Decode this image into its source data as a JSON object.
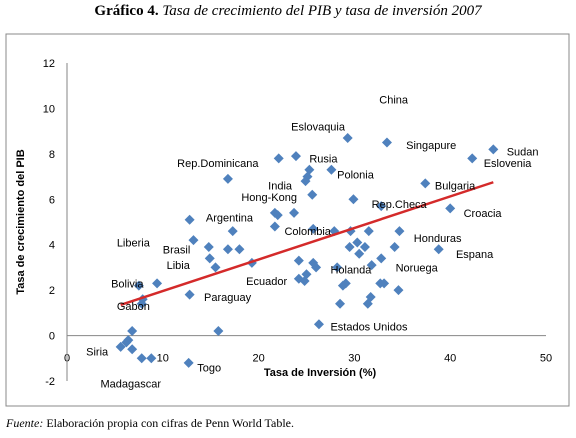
{
  "page": {
    "title_bold": "Gráfico 4.",
    "title_italic": "Tasa de crecimiento del PIB y tasa de inversión 2007",
    "source_label": "Fuente:",
    "source_text": "Elaboración propia con cifras de Penn World Table."
  },
  "chart_data": {
    "type": "scatter",
    "xlabel": "Tasa de Inversión (%)",
    "ylabel": "Tasa de crecimiento del PIB",
    "xlim": [
      0,
      50
    ],
    "ylim": [
      -2,
      12
    ],
    "xticks": [
      0,
      10,
      20,
      30,
      40,
      50
    ],
    "yticks": [
      -2,
      0,
      2,
      4,
      6,
      8,
      10,
      12
    ],
    "grid": false,
    "legend": "none",
    "marker_color": "#4f81bd",
    "trend_color": "#d42a2a",
    "trendline": {
      "x": [
        5.6,
        44.5
      ],
      "y": [
        1.35,
        6.75
      ]
    },
    "points": [
      {
        "x": 29.3,
        "y": 8.7
      },
      {
        "x": 33.4,
        "y": 8.5
      },
      {
        "x": 44.5,
        "y": 8.2
      },
      {
        "x": 42.3,
        "y": 7.8
      },
      {
        "x": 22.1,
        "y": 7.8
      },
      {
        "x": 23.9,
        "y": 7.9
      },
      {
        "x": 25.3,
        "y": 7.3
      },
      {
        "x": 25.1,
        "y": 7.0
      },
      {
        "x": 24.9,
        "y": 6.8
      },
      {
        "x": 27.6,
        "y": 7.3
      },
      {
        "x": 16.8,
        "y": 6.9
      },
      {
        "x": 37.4,
        "y": 6.7
      },
      {
        "x": 25.6,
        "y": 6.2
      },
      {
        "x": 29.9,
        "y": 6.0
      },
      {
        "x": 32.8,
        "y": 5.7
      },
      {
        "x": 40.0,
        "y": 5.6
      },
      {
        "x": 12.8,
        "y": 5.1
      },
      {
        "x": 21.7,
        "y": 5.4
      },
      {
        "x": 22.0,
        "y": 5.3
      },
      {
        "x": 23.7,
        "y": 5.4
      },
      {
        "x": 17.3,
        "y": 4.6
      },
      {
        "x": 21.7,
        "y": 4.8
      },
      {
        "x": 25.7,
        "y": 4.7
      },
      {
        "x": 27.9,
        "y": 4.6
      },
      {
        "x": 29.6,
        "y": 4.6
      },
      {
        "x": 31.5,
        "y": 4.6
      },
      {
        "x": 34.7,
        "y": 4.6
      },
      {
        "x": 30.3,
        "y": 4.1
      },
      {
        "x": 29.5,
        "y": 3.9
      },
      {
        "x": 31.1,
        "y": 3.9
      },
      {
        "x": 34.2,
        "y": 3.9
      },
      {
        "x": 38.8,
        "y": 3.8
      },
      {
        "x": 13.2,
        "y": 4.2
      },
      {
        "x": 14.8,
        "y": 3.9
      },
      {
        "x": 16.8,
        "y": 3.8
      },
      {
        "x": 18.0,
        "y": 3.8
      },
      {
        "x": 14.9,
        "y": 3.4
      },
      {
        "x": 15.5,
        "y": 3.0
      },
      {
        "x": 19.3,
        "y": 3.2
      },
      {
        "x": 24.2,
        "y": 3.3
      },
      {
        "x": 25.7,
        "y": 3.2
      },
      {
        "x": 26.0,
        "y": 3.0
      },
      {
        "x": 30.5,
        "y": 3.6
      },
      {
        "x": 32.8,
        "y": 3.4
      },
      {
        "x": 31.8,
        "y": 3.1
      },
      {
        "x": 28.2,
        "y": 3.0
      },
      {
        "x": 25.0,
        "y": 2.7
      },
      {
        "x": 24.2,
        "y": 2.5
      },
      {
        "x": 24.8,
        "y": 2.4
      },
      {
        "x": 29.1,
        "y": 2.3
      },
      {
        "x": 28.8,
        "y": 2.2
      },
      {
        "x": 32.7,
        "y": 2.3
      },
      {
        "x": 33.1,
        "y": 2.3
      },
      {
        "x": 31.7,
        "y": 1.7
      },
      {
        "x": 31.4,
        "y": 1.4
      },
      {
        "x": 28.5,
        "y": 1.4
      },
      {
        "x": 34.6,
        "y": 2.0
      },
      {
        "x": 12.8,
        "y": 1.8
      },
      {
        "x": 9.4,
        "y": 2.3
      },
      {
        "x": 7.5,
        "y": 2.2
      },
      {
        "x": 7.9,
        "y": 1.6
      },
      {
        "x": 7.8,
        "y": 1.4
      },
      {
        "x": 6.8,
        "y": 0.2
      },
      {
        "x": 6.4,
        "y": -0.2
      },
      {
        "x": 6.2,
        "y": -0.3
      },
      {
        "x": 5.6,
        "y": -0.5
      },
      {
        "x": 6.8,
        "y": -0.6
      },
      {
        "x": 7.8,
        "y": -1.0
      },
      {
        "x": 8.8,
        "y": -1.0
      },
      {
        "x": 12.7,
        "y": -1.2
      },
      {
        "x": 15.8,
        "y": 0.2
      },
      {
        "x": 26.3,
        "y": 0.5
      }
    ],
    "labels": [
      {
        "text": "China",
        "x": 32.6,
        "y": 10.4
      },
      {
        "text": "Eslovaquia",
        "x": 23.4,
        "y": 9.2
      },
      {
        "text": "Singapure",
        "x": 35.4,
        "y": 8.4
      },
      {
        "text": "Sudan",
        "x": 45.9,
        "y": 8.1
      },
      {
        "text": "Eslovenia",
        "x": 43.5,
        "y": 7.6
      },
      {
        "text": "Rep.Dominicana",
        "x": 11.5,
        "y": 7.6
      },
      {
        "text": "Rusia",
        "x": 25.3,
        "y": 7.8
      },
      {
        "text": "Polonia",
        "x": 28.2,
        "y": 7.1
      },
      {
        "text": "India",
        "x": 21.0,
        "y": 6.6
      },
      {
        "text": "Bulgaria",
        "x": 38.4,
        "y": 6.6
      },
      {
        "text": "Hong-Kong",
        "x": 18.2,
        "y": 6.1
      },
      {
        "text": "Rep.Checa",
        "x": 31.8,
        "y": 5.8
      },
      {
        "text": "Croacia",
        "x": 41.4,
        "y": 5.4
      },
      {
        "text": "Argentina",
        "x": 14.5,
        "y": 5.2
      },
      {
        "text": "Colombia",
        "x": 22.7,
        "y": 4.6
      },
      {
        "text": "Honduras",
        "x": 36.2,
        "y": 4.3
      },
      {
        "text": "Liberia",
        "x": 5.2,
        "y": 4.1
      },
      {
        "text": "Brasil",
        "x": 10.0,
        "y": 3.8
      },
      {
        "text": "Espana",
        "x": 40.6,
        "y": 3.6
      },
      {
        "text": "Libia",
        "x": 10.4,
        "y": 3.1
      },
      {
        "text": "Noruega",
        "x": 34.3,
        "y": 3.0
      },
      {
        "text": "Holanda",
        "x": 27.5,
        "y": 2.9
      },
      {
        "text": "Bolivia",
        "x": 4.6,
        "y": 2.3
      },
      {
        "text": "Ecuador",
        "x": 18.7,
        "y": 2.4
      },
      {
        "text": "Paraguay",
        "x": 14.3,
        "y": 1.7
      },
      {
        "text": "Gabon",
        "x": 5.2,
        "y": 1.3
      },
      {
        "text": "Estados Unidos",
        "x": 27.5,
        "y": 0.4
      },
      {
        "text": "Siria",
        "x": 2.0,
        "y": -0.7
      },
      {
        "text": "Togo",
        "x": 13.6,
        "y": -1.4
      },
      {
        "text": "Madagascar",
        "x": 3.5,
        "y": -2.1
      }
    ]
  }
}
